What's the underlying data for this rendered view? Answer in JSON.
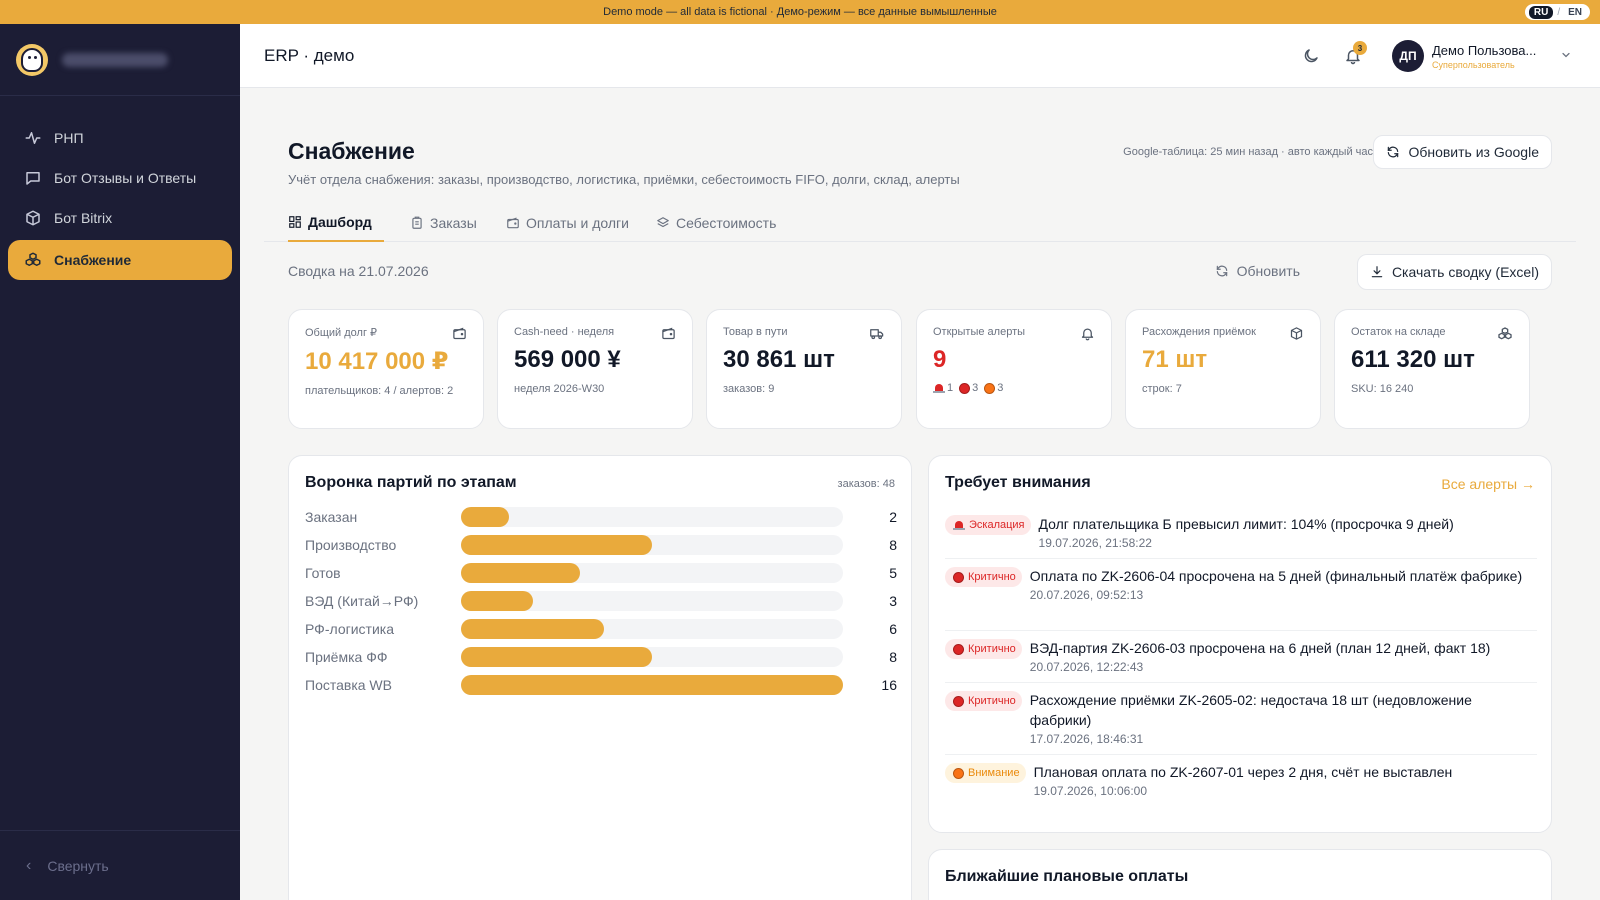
{
  "banner": {
    "text": "Demo mode — all data is fictional · Демо-режим — все данные вымышленные",
    "lang_active": "RU",
    "lang_sep": "/",
    "lang_other": "EN"
  },
  "sidebar": {
    "items": [
      {
        "label": "РНП",
        "icon": "pulse-icon"
      },
      {
        "label": "Бот Отзывы и Ответы",
        "icon": "chat-icon"
      },
      {
        "label": "Бот Bitrix",
        "icon": "package-icon"
      },
      {
        "label": "Снабжение",
        "icon": "boxes-icon",
        "active": true
      }
    ],
    "collapse_label": "Свернуть"
  },
  "header": {
    "title": "ERP · демо",
    "notifications": "3",
    "avatar_initials": "ДП",
    "user_name": "Демо Пользова...",
    "user_role": "Суперпользователь"
  },
  "page": {
    "title": "Снабжение",
    "subtitle": "Учёт отдела снабжения: заказы, производство, логистика, приёмки, себестоимость FIFO, долги, склад, алерты",
    "sync_info": "Google-таблица: 25 мин назад · авто каждый час",
    "google_button": "Обновить из Google",
    "tabs": [
      "Дашборд",
      "Заказы",
      "Оплаты и долги",
      "Себестоимость"
    ],
    "summary_date": "Сводка на 21.07.2026",
    "refresh_label": "Обновить",
    "excel_button": "Скачать сводку (Excel)"
  },
  "kpis": [
    {
      "label": "Общий долг ₽",
      "value": "10 417 000 ₽",
      "sub": "плательщиков: 4 / алертов: 2",
      "icon": "wallet-icon",
      "color": "#e9aa3c"
    },
    {
      "label": "Cash-need · неделя",
      "value": "569 000 ¥",
      "sub": "неделя 2026-W30",
      "icon": "wallet-icon"
    },
    {
      "label": "Товар в пути",
      "value": "30 861 шт",
      "sub": "заказов: 9",
      "icon": "truck-icon"
    },
    {
      "label": "Открытые алерты",
      "value": "9",
      "alerts": [
        "1",
        "3",
        "3"
      ],
      "icon": "bell-icon",
      "color": "#dc2626"
    },
    {
      "label": "Расхождения приёмок",
      "value": "71 шт",
      "sub": "строк: 7",
      "icon": "package-icon",
      "color": "#e9aa3c"
    },
    {
      "label": "Остаток на складе",
      "value": "611 320 шт",
      "sub": "SKU: 16 240",
      "icon": "boxes-icon"
    }
  ],
  "funnel": {
    "title": "Воронка партий по этапам",
    "count": "заказов: 48",
    "max": 16,
    "stages": [
      {
        "label": "Заказан",
        "value": 2
      },
      {
        "label": "Производство",
        "value": 8
      },
      {
        "label": "Готов",
        "value": 5
      },
      {
        "label": "ВЭД (Китай→РФ)",
        "value": 3
      },
      {
        "label": "РФ-логистика",
        "value": 6
      },
      {
        "label": "Приёмка ФФ",
        "value": 8
      },
      {
        "label": "Поставка WB",
        "value": 16
      }
    ]
  },
  "attention": {
    "title": "Требует внимания",
    "all_link": "Все алерты →",
    "alerts": [
      {
        "level": "Эскалация",
        "text": "Долг плательщика Б превысил лимит: 104% (просрочка 9 дней)",
        "time": "19.07.2026, 21:58:22"
      },
      {
        "level": "Критично",
        "text": "Оплата по ZK-2606-04 просрочена на 5 дней (финальный платёж фабрике)",
        "time": "20.07.2026, 09:52:13"
      },
      {
        "level": "Критично",
        "text": "ВЭД-партия ZK-2606-03 просрочена на 6 дней (план 12 дней, факт 18)",
        "time": "20.07.2026, 12:22:43"
      },
      {
        "level": "Критично",
        "text": "Расхождение приёмки ZK-2605-02: недостача 18 шт (недовложение фабрики)",
        "time": "17.07.2026, 18:46:31"
      },
      {
        "level": "Внимание",
        "text": "Плановая оплата по ZK-2607-01 через 2 дня, счёт не выставлен",
        "time": "19.07.2026, 10:06:00"
      }
    ]
  },
  "payments": {
    "title": "Ближайшие плановые оплаты"
  }
}
